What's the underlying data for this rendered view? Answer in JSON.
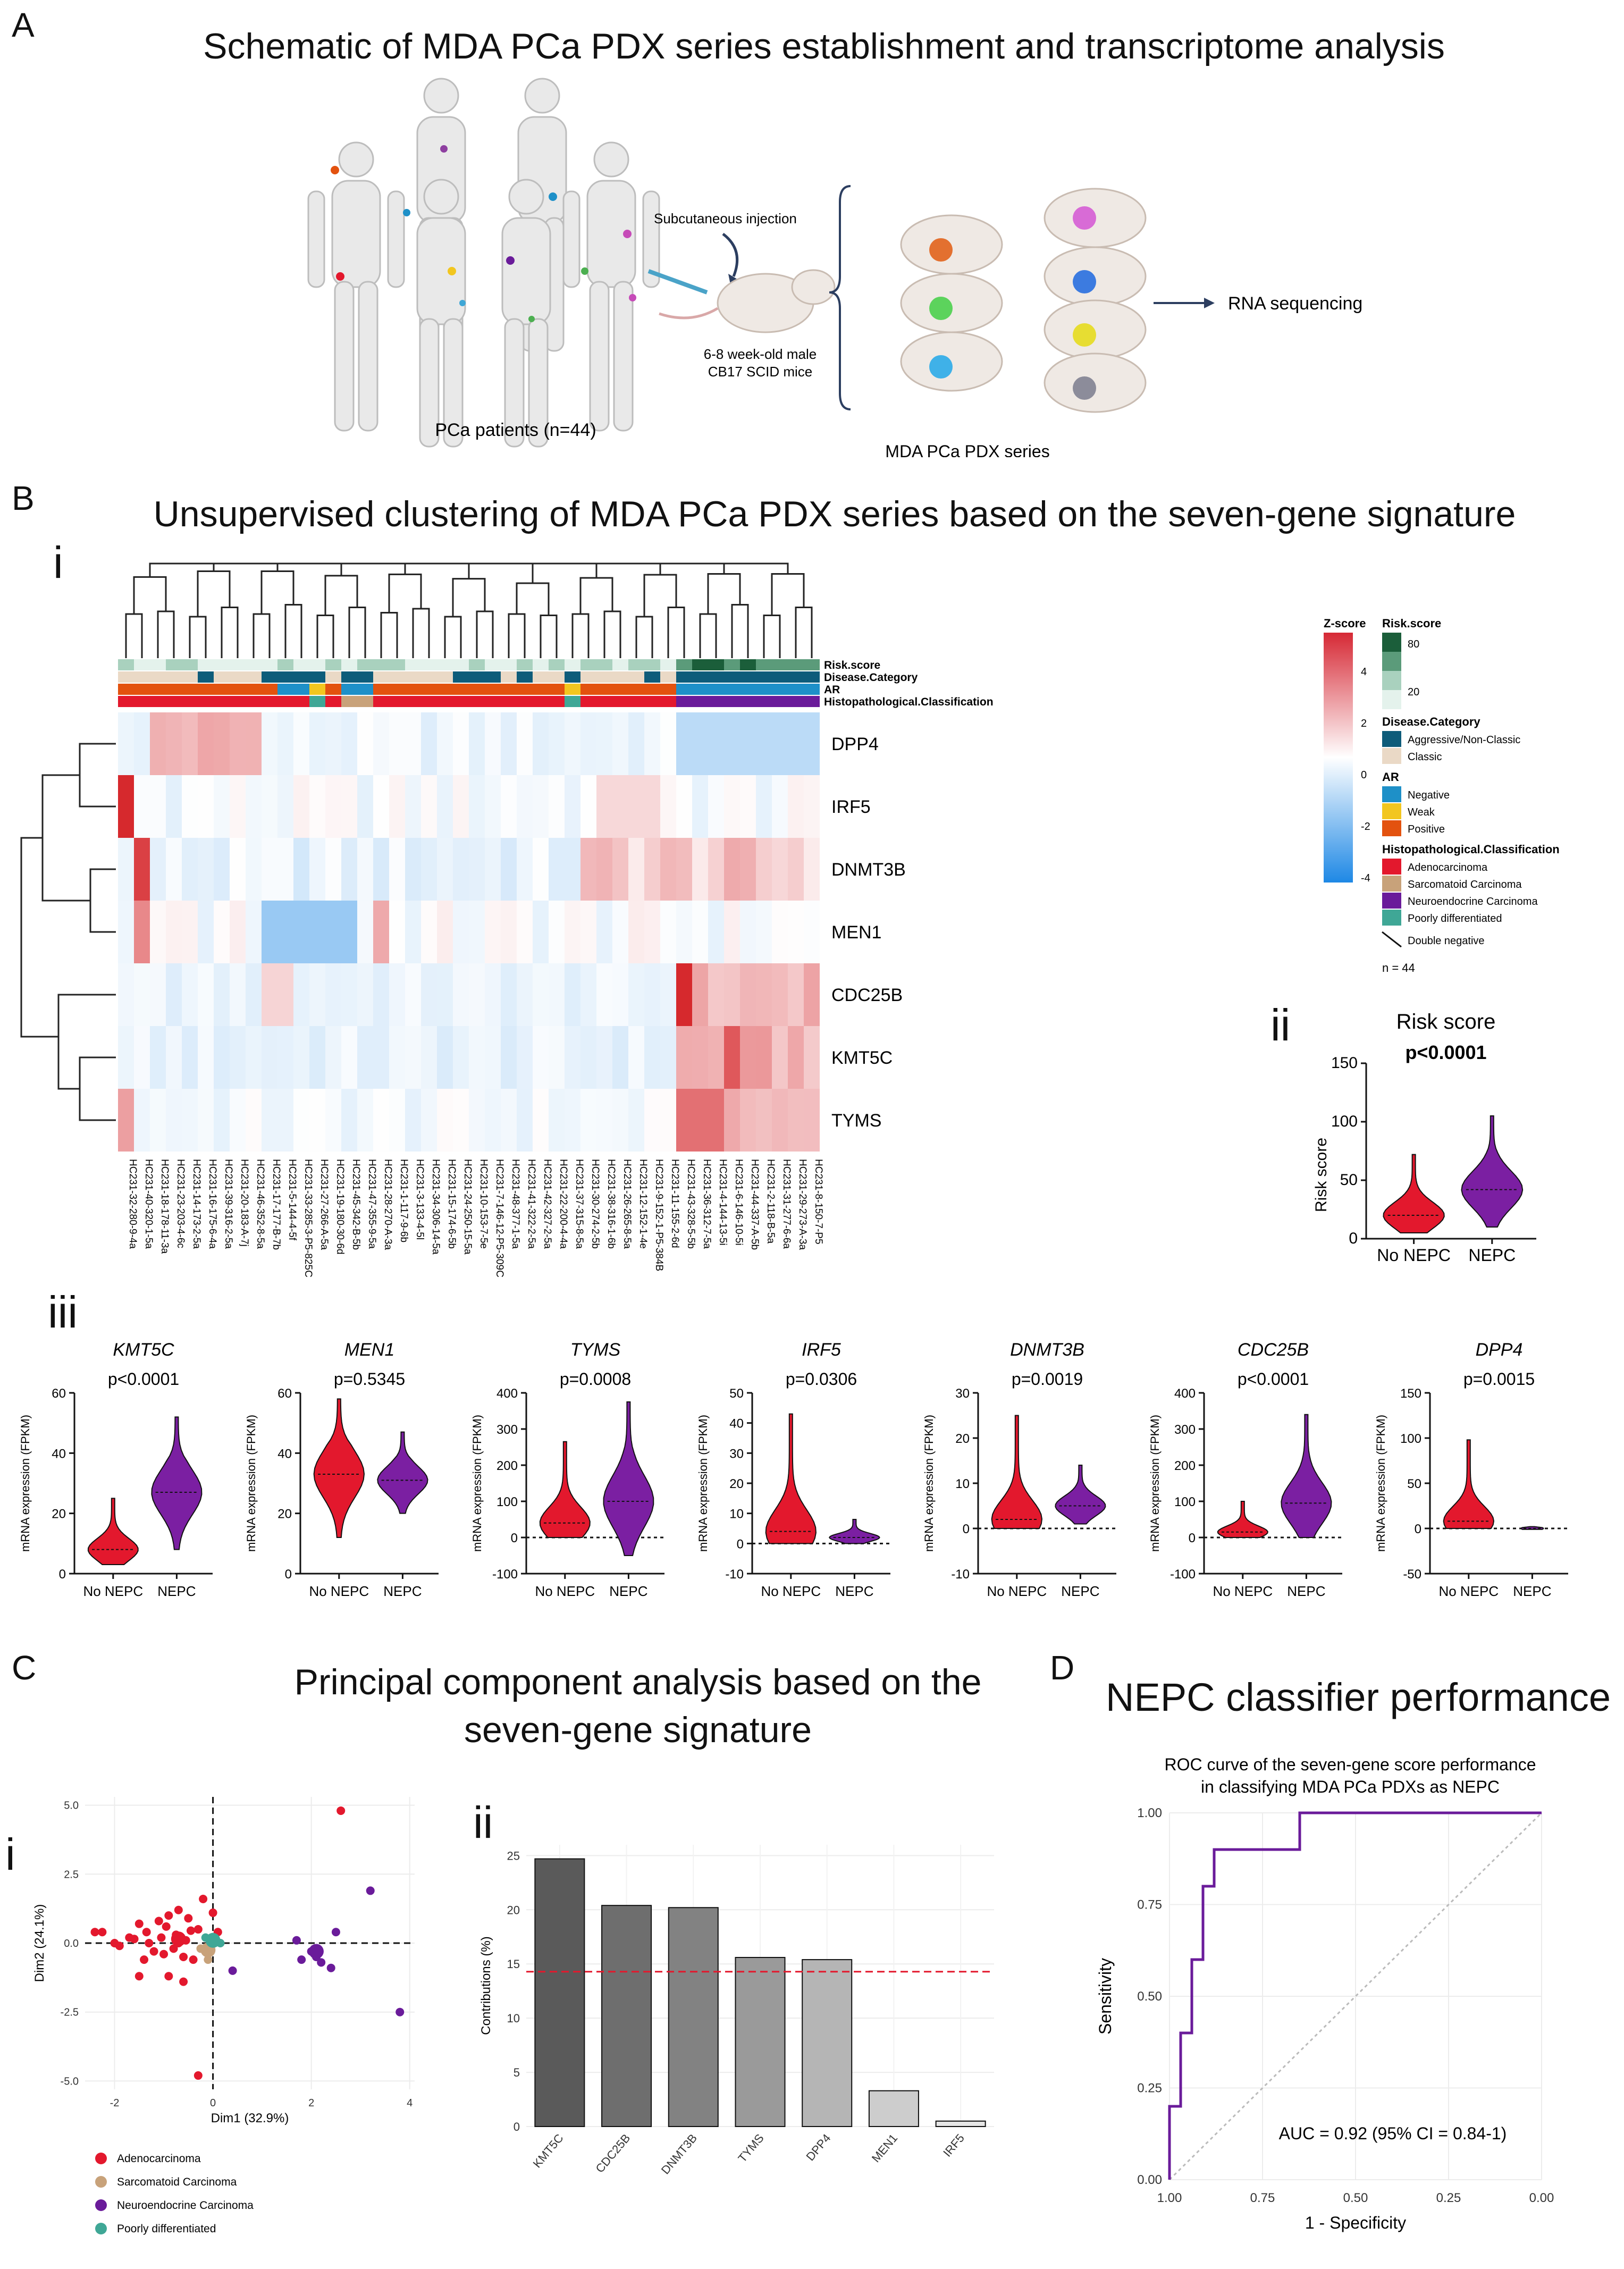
{
  "panelA": {
    "letter": "A",
    "title": "Schematic of MDA PCa PDX series establishment and transcriptome analysis",
    "injection_label": "Subcutaneous injection",
    "mice_label_1": "6-8 week-old male",
    "mice_label_2": "CB17 SCID mice",
    "rnaseq_label": "RNA sequencing",
    "patients_label": "PCa patients (n=44)",
    "pdx_label": "MDA PCa PDX series"
  },
  "panelB": {
    "letter": "B",
    "title": "Unsupervised clustering of MDA PCa PDX series based on the seven-gene signature",
    "sub_i": "i",
    "sub_ii": "ii",
    "sub_iii": "iii"
  },
  "panelC": {
    "letter": "C",
    "title_1": "Principal component analysis based on the",
    "title_2": "seven-gene signature",
    "sub_i": "i",
    "sub_ii": "ii"
  },
  "panelD": {
    "letter": "D",
    "title": "NEPC classifier performance"
  },
  "colors": {
    "adeno": "#E3182D",
    "sarcomatoid": "#C8A27A",
    "neuroendocrine": "#6A1B9A",
    "poorly": "#3FA796",
    "nepc_violin": "#7B1FA2",
    "risk_dark": "#1B5E3A",
    "risk_mid": "#5B9B7A",
    "risk_light": "#A9D1BE",
    "risk_pale": "#E4F2EC",
    "aggressive": "#0E5C7A",
    "classic": "#EAD9C6",
    "ar_negative": "#1E90C8",
    "ar_weak": "#F2C61F",
    "ar_positive": "#E3520F"
  },
  "chart_data": [
    {
      "id": "heatmap",
      "type": "heatmap",
      "samples": [
        "HC231-32-280-9-4a",
        "HC231-40-320-1-5a",
        "HC231-18-178-11-3a",
        "HC231-23-203-4-6c",
        "HC231-14-173-2-5a",
        "HC231-16-175-6-4a",
        "HC231-39-316-2-5a",
        "HC231-20-183-A-7j",
        "HC231-46-352-8-5a",
        "HC231-17-177-B-7b",
        "HC231-5-144-4-5f",
        "HC231-33-285-3-P5-825C",
        "HC231-27-266-A-5a",
        "HC231-19-180-30-6d",
        "HC231-45-342-B-5b",
        "HC231-47-355-9-5a",
        "HC231-28-270-A-3a",
        "HC231-1-117-9-6b",
        "HC231-3-133-4-5l",
        "HC231-34-306-14-5a",
        "HC231-15-174-6-5b",
        "HC231-24-250-15-5a",
        "HC231-10-153-7-5e",
        "HC231-7-146-12-P5-309C",
        "HC231-48-377-1-5a",
        "HC231-41-322-2-5a",
        "HC231-42-327-2-5a",
        "HC231-22-200-4-4a",
        "HC231-37-315-8-5a",
        "HC231-30-274-2-5b",
        "HC231-38-316-1-6b",
        "HC231-26-265-8-5a",
        "HC231-12-152-1-4e",
        "HC231-9-152-1-P5-384B",
        "HC231-11-155-2-6d",
        "HC231-43-328-5-5b",
        "HC231-36-312-7-5a",
        "HC231-4-144-13-5i",
        "HC231-6-146-10-5i",
        "HC231-44-337-A-5b",
        "HC231-2-118-B-5a",
        "HC231-31-277-6-6a",
        "HC231-29-273-A-3a",
        "HC231-8-150-7-P5"
      ],
      "genes": [
        "DPP4",
        "IRF5",
        "DNMT3B",
        "MEN1",
        "CDC25B",
        "KMT5C",
        "TYMS"
      ],
      "annotation_tracks": [
        "Risk.score",
        "Disease.Category",
        "AR",
        "Histopathological.Classification"
      ],
      "legend": {
        "zscore_title": "Z-score",
        "zscore_ticks": [
          "4",
          "2",
          "0",
          "-2",
          "-4"
        ],
        "risk_title": "Risk.score",
        "risk_ticks": [
          "80",
          "20"
        ],
        "disease_title": "Disease.Category",
        "disease_items": [
          "Aggressive/Non-Classic",
          "Classic"
        ],
        "ar_title": "AR",
        "ar_items": [
          "Negative",
          "Weak",
          "Positive"
        ],
        "histo_title": "Histopathological.Classification",
        "histo_items": [
          "Adenocarcinoma",
          "Sarcomatoid Carcinoma",
          "Neuroendocrine Carcinoma",
          "Poorly differentiated"
        ],
        "double_negative": "Double negative",
        "n_label": "n = 44"
      }
    },
    {
      "id": "risk-violin",
      "type": "violin",
      "title": "Risk score",
      "p_value": "p<0.0001",
      "ylabel": "Risk score",
      "categories": [
        "No NEPC",
        "NEPC"
      ],
      "yticks": [
        0,
        50,
        100,
        150
      ],
      "ylim": [
        0,
        150
      ],
      "medians": [
        20,
        42
      ],
      "ranges": [
        [
          5,
          72
        ],
        [
          10,
          105
        ]
      ]
    },
    {
      "id": "gene-violins",
      "type": "violin",
      "ylabel": "mRNA expression (FPKM)",
      "categories": [
        "No NEPC",
        "NEPC"
      ],
      "panels": [
        {
          "gene": "KMT5C",
          "p": "p<0.0001",
          "yticks": [
            0,
            20,
            40,
            60
          ],
          "ylim": [
            0,
            60
          ],
          "medians": [
            8,
            27
          ],
          "ranges": [
            [
              3,
              25
            ],
            [
              8,
              52
            ]
          ]
        },
        {
          "gene": "MEN1",
          "p": "p=0.5345",
          "yticks": [
            0,
            20,
            40,
            60
          ],
          "ylim": [
            0,
            60
          ],
          "medians": [
            33,
            31
          ],
          "ranges": [
            [
              12,
              58
            ],
            [
              20,
              47
            ]
          ]
        },
        {
          "gene": "TYMS",
          "p": "p=0.0008",
          "yticks": [
            -100,
            0,
            100,
            200,
            300,
            400
          ],
          "ylim": [
            -100,
            400
          ],
          "medians": [
            40,
            100
          ],
          "ranges": [
            [
              0,
              265
            ],
            [
              -50,
              375
            ]
          ]
        },
        {
          "gene": "IRF5",
          "p": "p=0.0306",
          "yticks": [
            -10,
            0,
            10,
            20,
            30,
            40,
            50
          ],
          "ylim": [
            -10,
            50
          ],
          "medians": [
            4,
            2
          ],
          "ranges": [
            [
              0,
              43
            ],
            [
              0,
              8
            ]
          ]
        },
        {
          "gene": "DNMT3B",
          "p": "p=0.0019",
          "yticks": [
            -10,
            0,
            10,
            20,
            30
          ],
          "ylim": [
            -10,
            30
          ],
          "medians": [
            2,
            5
          ],
          "ranges": [
            [
              0,
              25
            ],
            [
              1,
              14
            ]
          ]
        },
        {
          "gene": "CDC25B",
          "p": "p<0.0001",
          "yticks": [
            -100,
            0,
            100,
            200,
            300,
            400
          ],
          "ylim": [
            -100,
            400
          ],
          "medians": [
            15,
            95
          ],
          "ranges": [
            [
              0,
              100
            ],
            [
              0,
              340
            ]
          ]
        },
        {
          "gene": "DPP4",
          "p": "p=0.0015",
          "yticks": [
            -50,
            0,
            50,
            100,
            150
          ],
          "ylim": [
            -50,
            150
          ],
          "medians": [
            8,
            0
          ],
          "ranges": [
            [
              0,
              98
            ],
            [
              -1,
              2
            ]
          ]
        }
      ]
    },
    {
      "id": "pca",
      "type": "scatter",
      "xlabel": "Dim1 (32.9%)",
      "ylabel": "Dim2 (24.1%)",
      "xticks": [
        -2,
        0,
        2,
        4
      ],
      "yticks": [
        -5.0,
        -2.5,
        0.0,
        2.5,
        5.0
      ],
      "xtick_labels": [
        "-2",
        "0",
        "2",
        "4"
      ],
      "ytick_labels": [
        "-5.0",
        "-2.5",
        "0.0",
        "2.5",
        "5.0"
      ],
      "xlim": [
        -2.6,
        4.1
      ],
      "ylim": [
        -5.3,
        5.3
      ],
      "legend": [
        "Adenocarcinoma",
        "Sarcomatoid Carcinoma",
        "Neuroendocrine Carcinoma",
        "Poorly differentiated"
      ],
      "points": [
        {
          "x": -2.4,
          "y": 0.4,
          "g": 0
        },
        {
          "x": -2.25,
          "y": 0.4,
          "g": 0
        },
        {
          "x": -2.0,
          "y": 0.0,
          "g": 0
        },
        {
          "x": -1.9,
          "y": -0.1,
          "g": 0
        },
        {
          "x": -1.7,
          "y": 0.2,
          "g": 0
        },
        {
          "x": -1.6,
          "y": 0.15,
          "g": 0
        },
        {
          "x": -1.5,
          "y": 0.7,
          "g": 0
        },
        {
          "x": -1.4,
          "y": -0.6,
          "g": 0
        },
        {
          "x": -1.35,
          "y": 0.4,
          "g": 0
        },
        {
          "x": -1.3,
          "y": 0.0,
          "g": 0
        },
        {
          "x": -1.2,
          "y": -0.3,
          "g": 0
        },
        {
          "x": -1.1,
          "y": 0.8,
          "g": 0
        },
        {
          "x": -1.05,
          "y": 0.2,
          "g": 0
        },
        {
          "x": -1.0,
          "y": -0.4,
          "g": 0
        },
        {
          "x": -0.95,
          "y": 0.6,
          "g": 0
        },
        {
          "x": -0.9,
          "y": 1.0,
          "g": 0
        },
        {
          "x": -0.8,
          "y": -0.2,
          "g": 0
        },
        {
          "x": -0.75,
          "y": 0.3,
          "g": 0
        },
        {
          "x": -0.7,
          "y": 1.2,
          "g": 0
        },
        {
          "x": -0.6,
          "y": -0.5,
          "g": 0
        },
        {
          "x": -0.55,
          "y": 0.1,
          "g": 0
        },
        {
          "x": -0.5,
          "y": 0.9,
          "g": 0
        },
        {
          "x": -0.4,
          "y": -0.6,
          "g": 0
        },
        {
          "x": -0.3,
          "y": 0.5,
          "g": 0
        },
        {
          "x": -0.2,
          "y": 1.6,
          "g": 0
        },
        {
          "x": 0.0,
          "y": 1.1,
          "g": 0
        },
        {
          "x": 0.1,
          "y": 0.4,
          "g": 0
        },
        {
          "x": -0.6,
          "y": -1.4,
          "g": 0
        },
        {
          "x": -0.9,
          "y": -1.2,
          "g": 0
        },
        {
          "x": -1.5,
          "y": -1.2,
          "g": 0
        },
        {
          "x": -0.3,
          "y": -4.8,
          "g": 0
        },
        {
          "x": 2.6,
          "y": 4.8,
          "g": 0
        },
        {
          "x": -0.7,
          "y": 0.0,
          "g": 0
        },
        {
          "x": -0.45,
          "y": 0.45,
          "g": 0
        },
        {
          "x": -0.1,
          "y": -0.6,
          "g": 1
        },
        {
          "x": -0.25,
          "y": -0.2,
          "g": 1
        },
        {
          "x": 0.15,
          "y": 0.0,
          "g": 3
        },
        {
          "x": -0.15,
          "y": 0.2,
          "g": 3
        },
        {
          "x": 1.7,
          "y": 0.1,
          "g": 2
        },
        {
          "x": 1.8,
          "y": -0.6,
          "g": 2
        },
        {
          "x": 2.0,
          "y": -0.3,
          "g": 2
        },
        {
          "x": 2.2,
          "y": -0.7,
          "g": 2
        },
        {
          "x": 2.4,
          "y": -0.9,
          "g": 2
        },
        {
          "x": 2.5,
          "y": 0.4,
          "g": 2
        },
        {
          "x": 3.2,
          "y": 1.9,
          "g": 2
        },
        {
          "x": 3.8,
          "y": -2.5,
          "g": 2
        },
        {
          "x": 2.1,
          "y": -0.5,
          "g": 2
        },
        {
          "x": 0.4,
          "y": -1.0,
          "g": 2
        }
      ]
    },
    {
      "id": "contributions",
      "type": "bar",
      "ylabel": "Contributions (%)",
      "categories": [
        "KMT5C",
        "CDC25B",
        "DNMT3B",
        "TYMS",
        "DPP4",
        "MEN1",
        "IRF5"
      ],
      "values": [
        24.7,
        20.4,
        20.2,
        15.6,
        15.4,
        3.3,
        0.5
      ],
      "yticks": [
        0,
        5,
        10,
        15,
        20,
        25
      ],
      "ylim": [
        0,
        26
      ],
      "reference_line": 14.29,
      "bar_colors": [
        "#5a5a5a",
        "#6e6e6e",
        "#828282",
        "#9a9a9a",
        "#b5b5b5",
        "#cdcdcd",
        "#e6e6e6"
      ]
    },
    {
      "id": "roc",
      "type": "line",
      "title_1": "ROC curve of the seven-gene score performance",
      "title_2": "in classifying MDA PCa PDXs as NEPC",
      "xlabel": "1 - Specificity",
      "ylabel": "Sensitivity",
      "xticks": [
        1.0,
        0.75,
        0.5,
        0.25,
        0.0
      ],
      "xtick_labels": [
        "1.00",
        "0.75",
        "0.50",
        "0.25",
        "0.00"
      ],
      "yticks": [
        0,
        0.25,
        0.5,
        0.75,
        1.0
      ],
      "ytick_labels": [
        "0.00",
        "0.25",
        "0.50",
        "0.75",
        "1.00"
      ],
      "auc_label": "AUC = 0.92 (95% CI = 0.84-1)",
      "specificity": [
        1.0,
        1.0,
        0.97,
        0.97,
        0.94,
        0.94,
        0.91,
        0.91,
        0.88,
        0.88,
        0.65,
        0.65,
        0.0
      ],
      "sensitivity": [
        0.0,
        0.2,
        0.2,
        0.4,
        0.4,
        0.6,
        0.6,
        0.8,
        0.8,
        0.9,
        0.9,
        1.0,
        1.0
      ]
    }
  ]
}
